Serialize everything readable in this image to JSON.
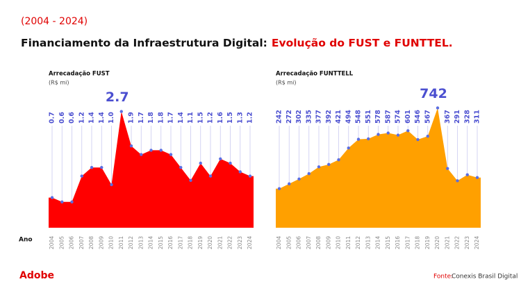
{
  "header": {
    "period": "(2004 - 2024)",
    "title": "Financiamento da Infraestrutura Digital:",
    "title_highlight": "Evolução do FUST e FUNTTEL.",
    "x_axis_label": "Ano"
  },
  "footer": {
    "brand": "Adobe",
    "source_label": "Fonte:",
    "source": "Conexis Brasil Digital"
  },
  "chart_data": [
    {
      "type": "area",
      "title": "Arrecadação FUST",
      "subtitle": "(R$ mi)",
      "color": "#ff0000",
      "categories": [
        "2004",
        "2005",
        "2006",
        "2007",
        "2008",
        "2009",
        "2010",
        "2011",
        "2012",
        "2013",
        "2014",
        "2015",
        "2016",
        "2017",
        "2018",
        "2019",
        "2020",
        "2021",
        "2022",
        "2023",
        "2024"
      ],
      "values": [
        0.7,
        0.6,
        0.6,
        1.2,
        1.4,
        1.4,
        1.0,
        2.7,
        1.9,
        1.7,
        1.8,
        1.8,
        1.7,
        1.4,
        1.1,
        1.5,
        1.2,
        1.6,
        1.5,
        1.3,
        1.2
      ],
      "value_labels": [
        "0.7",
        "0.6",
        "0.6",
        "1.2",
        "1.4",
        "1.4",
        "1.0",
        "2.7",
        "1.9",
        "1.7",
        "1.8",
        "1.8",
        "1.7",
        "1.4",
        "1.1",
        "1.5",
        "1.2",
        "1.6",
        "1.5",
        "1.3",
        "1.2"
      ],
      "ylim": [
        0,
        3
      ]
    },
    {
      "type": "area",
      "title": "Arrecadação FUNTTELL",
      "subtitle": "(R$ mi)",
      "color": "#ffa000",
      "categories": [
        "2004",
        "2005",
        "2006",
        "2007",
        "2008",
        "2009",
        "2010",
        "2011",
        "2012",
        "2013",
        "2014",
        "2015",
        "2016",
        "2017",
        "2018",
        "2019",
        "2020",
        "2021",
        "2022",
        "2023",
        "2024"
      ],
      "values": [
        242,
        272,
        302,
        335,
        377,
        392,
        421,
        494,
        548,
        551,
        578,
        587,
        574,
        601,
        546,
        567,
        742,
        367,
        291,
        328,
        311
      ],
      "ylim": [
        0,
        800
      ]
    }
  ]
}
